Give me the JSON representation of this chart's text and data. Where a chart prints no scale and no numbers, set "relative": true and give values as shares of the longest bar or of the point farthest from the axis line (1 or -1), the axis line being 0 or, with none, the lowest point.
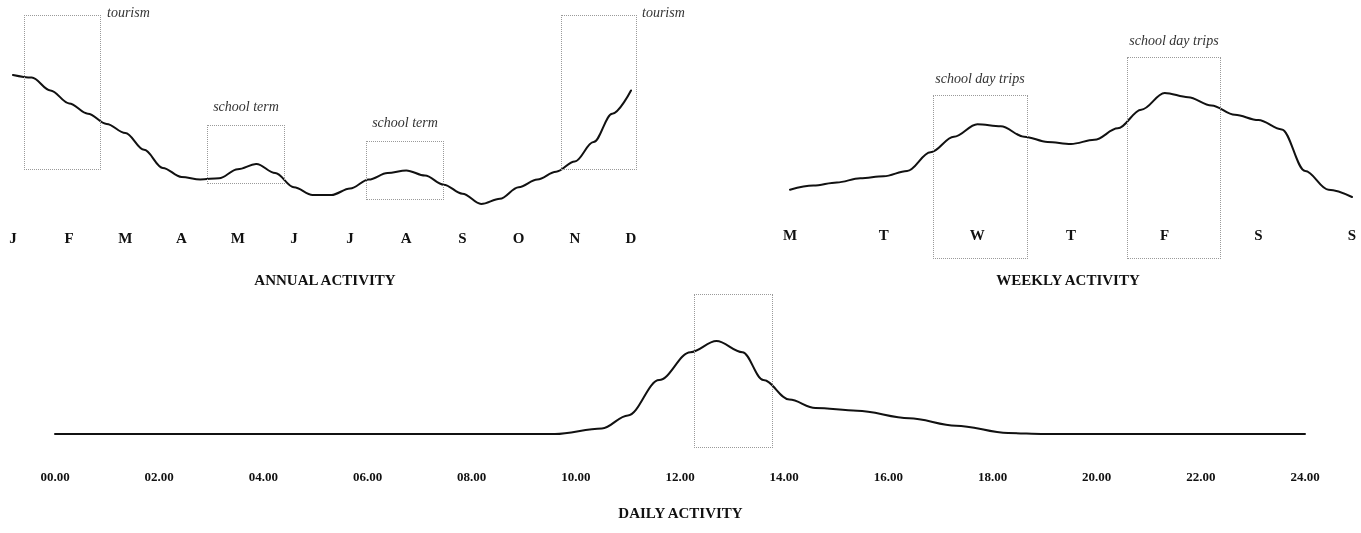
{
  "chart_data": [
    {
      "type": "line",
      "title": "ANNUAL ACTIVITY",
      "relative": true,
      "categories": [
        "J",
        null,
        null,
        "F",
        null,
        null,
        "M",
        null,
        null,
        "A",
        null,
        null,
        "M",
        null,
        null,
        "J",
        null,
        null,
        "J",
        null,
        null,
        "A",
        null,
        null,
        "S",
        null,
        null,
        "O",
        null,
        null,
        "N",
        null,
        null,
        "D"
      ],
      "series": [
        {
          "color": "#111111",
          "values": [
            1.0,
            0.98,
            0.88,
            0.78,
            0.7,
            0.62,
            0.55,
            0.42,
            0.28,
            0.21,
            0.19,
            0.2,
            0.27,
            0.31,
            0.24,
            0.13,
            0.07,
            0.07,
            0.12,
            0.19,
            0.24,
            0.26,
            0.22,
            0.15,
            0.08,
            0,
            0.04,
            0.13,
            0.19,
            0.25,
            0.33,
            0.48,
            0.7,
            0.88
          ]
        }
      ],
      "annotations": [
        "tourism",
        "school term",
        "school term",
        "tourism"
      ]
    },
    {
      "type": "line",
      "title": "WEEKLY ACTIVITY",
      "relative": true,
      "categories": [
        "M",
        null,
        null,
        null,
        "T",
        null,
        null,
        null,
        "W",
        null,
        null,
        null,
        "T",
        null,
        null,
        null,
        "F",
        null,
        null,
        null,
        "S",
        null,
        null,
        null,
        "S"
      ],
      "series": [
        {
          "color": "#111111",
          "values": [
            0.07,
            0.11,
            0.14,
            0.18,
            0.2,
            0.25,
            0.43,
            0.58,
            0.7,
            0.68,
            0.58,
            0.53,
            0.51,
            0.55,
            0.66,
            0.84,
            1.0,
            0.96,
            0.88,
            0.79,
            0.74,
            0.65,
            0.25,
            0.07,
            0
          ]
        }
      ],
      "annotations": [
        "school day trips",
        "school day trips"
      ]
    },
    {
      "type": "line",
      "title": "DAILY ACTIVITY",
      "relative": true,
      "xlim": [
        0,
        24
      ],
      "xticks": [
        {
          "value": 0,
          "label": "00.00"
        },
        {
          "value": 2,
          "label": "02.00"
        },
        {
          "value": 4,
          "label": "04.00"
        },
        {
          "value": 6,
          "label": "06.00"
        },
        {
          "value": 8,
          "label": "08.00"
        },
        {
          "value": 10,
          "label": "10.00"
        },
        {
          "value": 12,
          "label": "12.00"
        },
        {
          "value": 14,
          "label": "14.00"
        },
        {
          "value": 16,
          "label": "16.00"
        },
        {
          "value": 18,
          "label": "18.00"
        },
        {
          "value": 20,
          "label": "20.00"
        },
        {
          "value": 22,
          "label": "22.00"
        },
        {
          "value": 24,
          "label": "24.00"
        }
      ],
      "series": [
        {
          "color": "#111111",
          "x": [
            0,
            9.6,
            10.5,
            11.0,
            11.6,
            12.2,
            12.7,
            13.2,
            13.6,
            14.1,
            14.6,
            15.4,
            16.4,
            17.3,
            18.3,
            19.0,
            24
          ],
          "values": [
            0,
            0,
            0.06,
            0.2,
            0.58,
            0.88,
            1.0,
            0.88,
            0.58,
            0.37,
            0.28,
            0.25,
            0.17,
            0.09,
            0.01,
            0,
            0
          ]
        }
      ]
    }
  ]
}
